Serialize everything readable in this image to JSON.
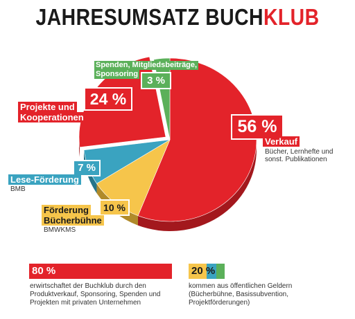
{
  "title_main": "JAHRESUMSATZ BUCH",
  "title_accent": "KLUB",
  "chart_data": {
    "type": "pie",
    "title": "JAHRESUMSATZ BUCHKLUB",
    "slices": [
      {
        "name": "Verkauf",
        "value": 56,
        "value_label": "56 %",
        "note": "Bücher, Lernhefte und sonst. Publikationen",
        "color": "#e3232a"
      },
      {
        "name": "Förderung Bücherbühne",
        "value": 10,
        "value_label": "10 %",
        "note": "BMWKMS",
        "color": "#f6c54b"
      },
      {
        "name": "Lese-Förderung",
        "value": 7,
        "value_label": "7 %",
        "note": "BMB",
        "color": "#3aa3c0"
      },
      {
        "name": "Projekte und Kooperationen",
        "value": 24,
        "value_label": "24 %",
        "note": "",
        "color": "#e3232a"
      },
      {
        "name": "Spenden, Mitgliedsbeiträge, Sponsoring",
        "value": 3,
        "value_label": "3 %",
        "note": "",
        "color": "#5bb05a"
      }
    ]
  },
  "labels": {
    "verkauf": "Verkauf",
    "verkauf_note": "Bücher, Lernhefte und sonst. Publikationen",
    "foerderung_line1": "Förderung",
    "foerderung_line2": "Bücherbühne",
    "foerderung_note": "BMWKMS",
    "lese": "Lese-Förderung",
    "lese_note": "BMB",
    "projekte_line1": "Projekte und",
    "projekte_line2": "Kooperationen",
    "spenden_line1": "Spenden, Mitgliedsbeiträge,",
    "spenden_line2": "Sponsoring"
  },
  "summary": {
    "private_pct": "80 %",
    "private_text": "erwirtschaftet der Buchklub durch den Produktverkauf, Sponsoring, Spenden und Projekten mit privaten Unternehmen",
    "public_pct_a": "20",
    "public_pct_b": " %",
    "public_text": "kommen aus öffentlichen Geldern (Bücherbühne, Basissubvention, Projektförderungen)"
  },
  "colors": {
    "red": "#e3232a",
    "red_dark": "#a3181d",
    "yellow": "#f6c54b",
    "yellow_dark": "#b08a2a",
    "blue": "#3aa3c0",
    "blue_dark": "#24748a",
    "green": "#5bb05a",
    "green_dark": "#3a7c3a"
  }
}
